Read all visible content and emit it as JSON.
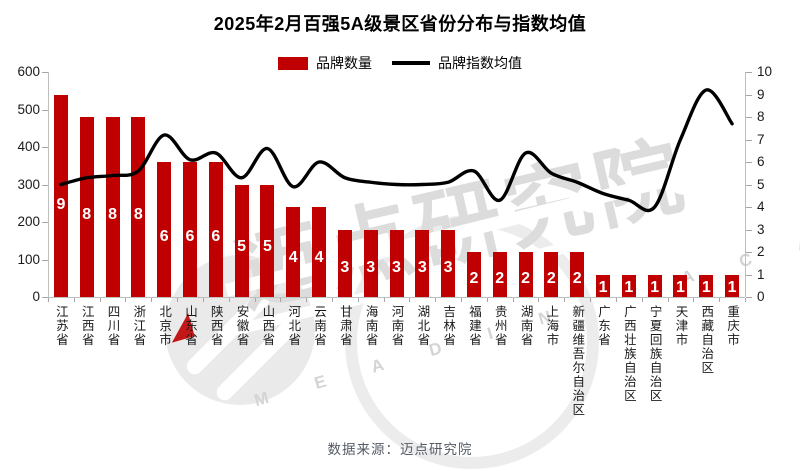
{
  "chart_data": {
    "type": "bar+line combo",
    "title": "2025年2月百强5A级景区省份分布与指数均值",
    "legend_position": "top",
    "grid": false,
    "categories": [
      "江苏省",
      "江西省",
      "四川省",
      "浙江省",
      "北京市",
      "山东省",
      "陕西省",
      "安徽省",
      "山西省",
      "河北省",
      "云南省",
      "甘肃省",
      "海南省",
      "河南省",
      "湖北省",
      "吉林省",
      "福建省",
      "贵州省",
      "湖南省",
      "上海市",
      "新疆维吾尔自治区",
      "广东省",
      "广西壮族自治区",
      "宁夏回族自治区",
      "天津市",
      "西藏自治区",
      "重庆市"
    ],
    "series": [
      {
        "name": "品牌数量",
        "type": "bar",
        "axis": "left",
        "color": "#C00000",
        "label_color": "#FFFFFF",
        "values": [
          9,
          8,
          8,
          8,
          6,
          6,
          6,
          5,
          5,
          4,
          4,
          3,
          3,
          3,
          3,
          3,
          2,
          2,
          2,
          2,
          2,
          1,
          1,
          1,
          1,
          1,
          1
        ]
      },
      {
        "name": "品牌指数均值",
        "type": "line",
        "axis": "right",
        "color": "#000000",
        "values": [
          5.0,
          5.3,
          5.4,
          5.6,
          7.2,
          6.1,
          6.4,
          5.3,
          6.6,
          4.9,
          6.0,
          5.3,
          5.1,
          5.0,
          5.0,
          5.1,
          5.6,
          4.3,
          6.4,
          5.5,
          5.1,
          4.6,
          4.3,
          4.0,
          7.0,
          9.2,
          7.7
        ]
      }
    ],
    "left_axis": {
      "min": 0,
      "max": 600,
      "step": 100,
      "tick_labels": [
        "0",
        "100",
        "200",
        "300",
        "400",
        "500",
        "600"
      ]
    },
    "right_axis": {
      "min": 0,
      "max": 10,
      "step": 1,
      "tick_labels": [
        "0",
        "1",
        "2",
        "3",
        "4",
        "5",
        "6",
        "7",
        "8",
        "9",
        "10"
      ]
    },
    "bar_scale_note": "bar of count N is drawn at N×60 on the left axis",
    "watermark": {
      "text": "迈点研究院",
      "letters": "M  E  A  D  I  N       A  C  A  D  E  M  Y"
    }
  },
  "footer": {
    "source": "数据来源：迈点研究院"
  }
}
